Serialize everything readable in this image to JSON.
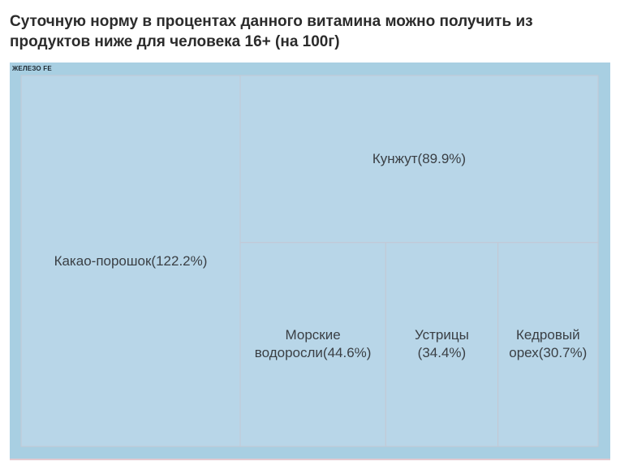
{
  "title": "Суточную норму в процентах данного витамина можно получить из продуктов ниже для человека 16+ (на 100г)",
  "chart_data": {
    "type": "treemap",
    "group": "ЖЕЛЕЗО FE",
    "items": [
      {
        "name": "Какао-порошок",
        "value": 122.2,
        "label": "Какао-порошок(122.2%)"
      },
      {
        "name": "Кунжут",
        "value": 89.9,
        "label": "Кунжут(89.9%)"
      },
      {
        "name": "Морские водоросли",
        "value": 44.6,
        "label": "Морские водоросли(44.6%)"
      },
      {
        "name": "Устрицы",
        "value": 34.4,
        "label": "Устрицы (34.4%)"
      },
      {
        "name": "Кедровый орех",
        "value": 30.7,
        "label": "Кедровый орех(30.7%)"
      }
    ],
    "colors": {
      "cell": "#b8d6e8",
      "stroke": "#c4c8d4",
      "group_bg": "#a8cfe2"
    }
  }
}
